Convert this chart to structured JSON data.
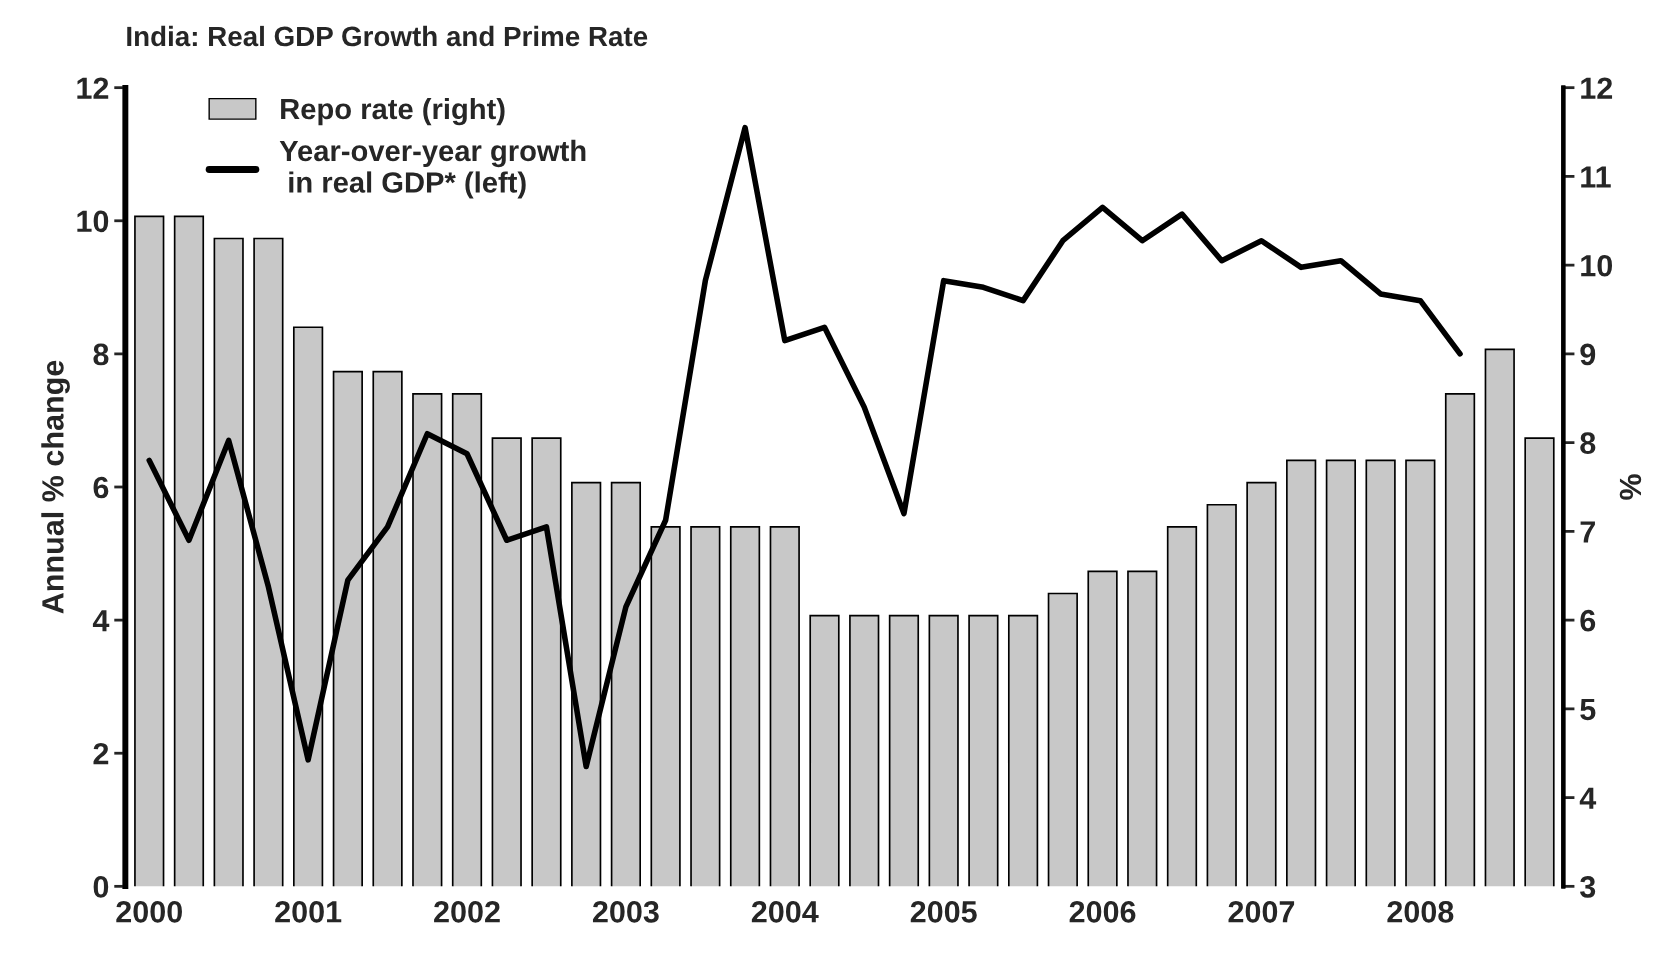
{
  "chart_data": {
    "type": "bar",
    "title": "India: Real GDP Growth and Prime Rate",
    "ylabel": "Annual % change",
    "y2label": "%",
    "categories": [
      "2000",
      null,
      null,
      null,
      "2001",
      null,
      null,
      null,
      "2002",
      null,
      null,
      null,
      "2003",
      null,
      null,
      null,
      "2004",
      null,
      null,
      null,
      "2005",
      null,
      null,
      null,
      "2006",
      null,
      null,
      null,
      "2007",
      null,
      null,
      null,
      "2008",
      null,
      null,
      null
    ],
    "series": [
      {
        "name": "Repo rate (right)",
        "axis": "y2",
        "color": "#c8c8c8",
        "values": [
          10.55,
          10.55,
          10.3,
          10.3,
          9.3,
          8.8,
          8.8,
          8.55,
          8.55,
          8.05,
          8.05,
          7.55,
          7.55,
          7.05,
          7.05,
          7.05,
          7.05,
          6.05,
          6.05,
          6.05,
          6.05,
          6.05,
          6.05,
          6.3,
          6.55,
          6.55,
          7.05,
          7.3,
          7.55,
          7.8,
          7.8,
          7.8,
          7.8,
          8.55,
          9.05,
          8.05
        ]
      },
      {
        "name": "Year-over-year growth\n in real GDP* (left)",
        "type": "line",
        "axis": "y",
        "color": "#000000",
        "values": [
          6.4,
          5.2,
          6.7,
          4.5,
          1.9,
          4.6,
          5.4,
          6.8,
          6.5,
          5.2,
          5.4,
          1.8,
          4.2,
          5.5,
          9.1,
          11.4,
          8.2,
          8.4,
          7.2,
          5.6,
          9.1,
          9.0,
          8.8,
          9.7,
          10.2,
          9.7,
          10.1,
          9.4,
          9.7,
          9.3,
          9.4,
          8.9,
          8.8,
          8.0,
          null,
          null
        ]
      }
    ],
    "ylim": [
      0,
      12
    ],
    "yticks": [
      0,
      2,
      4,
      6,
      8,
      10,
      12
    ],
    "y2lim": [
      3,
      12
    ],
    "y2ticks": [
      3,
      4,
      5,
      6,
      7,
      8,
      9,
      10,
      11,
      12
    ],
    "grid": false,
    "legend": "top left"
  }
}
